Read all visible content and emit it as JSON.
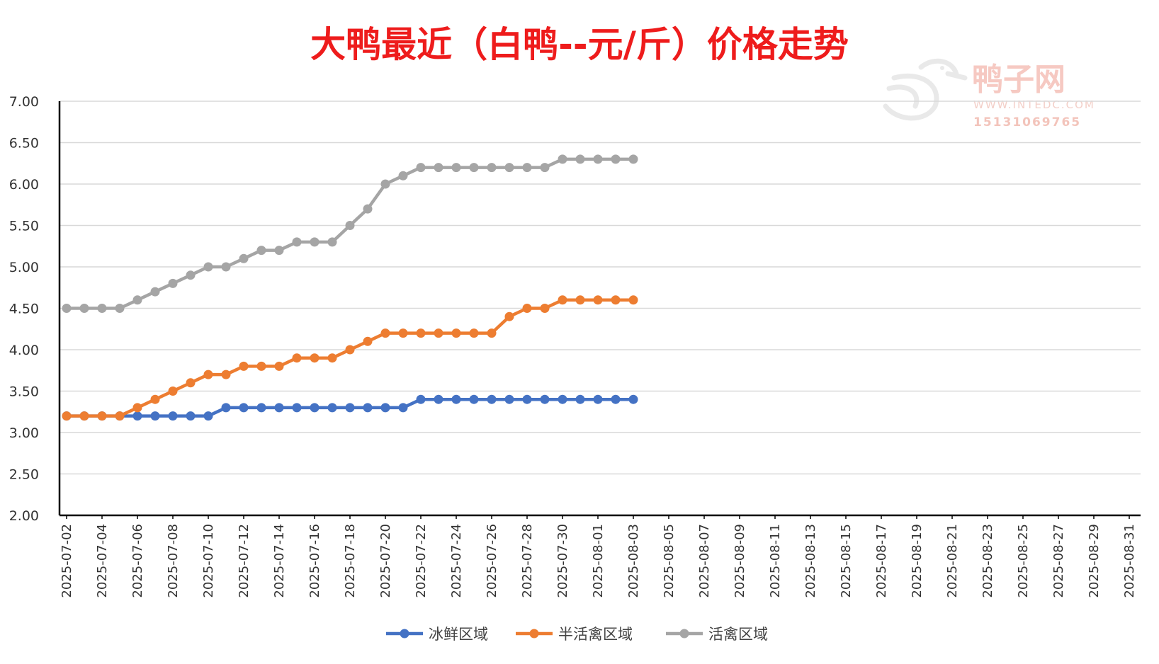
{
  "chart_data": {
    "type": "line",
    "title": "大鸭最近（白鸭--元/斤）价格走势",
    "ylim": [
      2.0,
      7.0
    ],
    "y_ticks": [
      "2.00",
      "2.50",
      "3.00",
      "3.50",
      "4.00",
      "4.50",
      "5.00",
      "5.50",
      "6.00",
      "6.50",
      "7.00"
    ],
    "x_tick_labels": [
      "2025-07-02",
      "2025-07-04",
      "2025-07-06",
      "2025-07-08",
      "2025-07-10",
      "2025-07-12",
      "2025-07-14",
      "2025-07-16",
      "2025-07-18",
      "2025-07-20",
      "2025-07-22",
      "2025-07-24",
      "2025-07-26",
      "2025-07-28",
      "2025-07-30",
      "2025-08-01",
      "2025-08-03",
      "2025-08-05",
      "2025-08-07",
      "2025-08-09",
      "2025-08-11",
      "2025-08-13",
      "2025-08-15",
      "2025-08-17",
      "2025-08-19",
      "2025-08-21",
      "2025-08-23",
      "2025-08-25",
      "2025-08-27",
      "2025-08-29",
      "2025-08-31"
    ],
    "x_range": [
      "2025-07-02",
      "2025-08-31"
    ],
    "grid": true,
    "legend_position": "bottom",
    "x": [
      "2025-07-02",
      "2025-07-03",
      "2025-07-04",
      "2025-07-05",
      "2025-07-06",
      "2025-07-07",
      "2025-07-08",
      "2025-07-09",
      "2025-07-10",
      "2025-07-11",
      "2025-07-12",
      "2025-07-13",
      "2025-07-14",
      "2025-07-15",
      "2025-07-16",
      "2025-07-17",
      "2025-07-18",
      "2025-07-19",
      "2025-07-20",
      "2025-07-21",
      "2025-07-22",
      "2025-07-23",
      "2025-07-24",
      "2025-07-25",
      "2025-07-26",
      "2025-07-27",
      "2025-07-28",
      "2025-07-29",
      "2025-07-30",
      "2025-07-31",
      "2025-08-01",
      "2025-08-02",
      "2025-08-03"
    ],
    "series": [
      {
        "name": "冰鲜区域",
        "color": "#4472c4",
        "values": [
          3.2,
          3.2,
          3.2,
          3.2,
          3.2,
          3.2,
          3.2,
          3.2,
          3.2,
          3.3,
          3.3,
          3.3,
          3.3,
          3.3,
          3.3,
          3.3,
          3.3,
          3.3,
          3.3,
          3.3,
          3.4,
          3.4,
          3.4,
          3.4,
          3.4,
          3.4,
          3.4,
          3.4,
          3.4,
          3.4,
          3.4,
          3.4,
          3.4
        ]
      },
      {
        "name": "半活禽区域",
        "color": "#ed7d31",
        "values": [
          3.2,
          3.2,
          3.2,
          3.2,
          3.3,
          3.4,
          3.5,
          3.6,
          3.7,
          3.7,
          3.8,
          3.8,
          3.8,
          3.9,
          3.9,
          3.9,
          4.0,
          4.1,
          4.2,
          4.2,
          4.2,
          4.2,
          4.2,
          4.2,
          4.2,
          4.4,
          4.5,
          4.5,
          4.6,
          4.6,
          4.6,
          4.6,
          4.6
        ]
      },
      {
        "name": "活禽区域",
        "color": "#a5a5a5",
        "values": [
          4.5,
          4.5,
          4.5,
          4.5,
          4.6,
          4.7,
          4.8,
          4.9,
          5.0,
          5.0,
          5.1,
          5.2,
          5.2,
          5.3,
          5.3,
          5.3,
          5.5,
          5.7,
          6.0,
          6.1,
          6.2,
          6.2,
          6.2,
          6.2,
          6.2,
          6.2,
          6.2,
          6.2,
          6.3,
          6.3,
          6.3,
          6.3,
          6.3
        ]
      }
    ]
  },
  "watermark": {
    "brand": "鸭子网",
    "url": "WWW.INTEDC.COM",
    "phone": "15131069765",
    "color": "#f6c9c2"
  }
}
